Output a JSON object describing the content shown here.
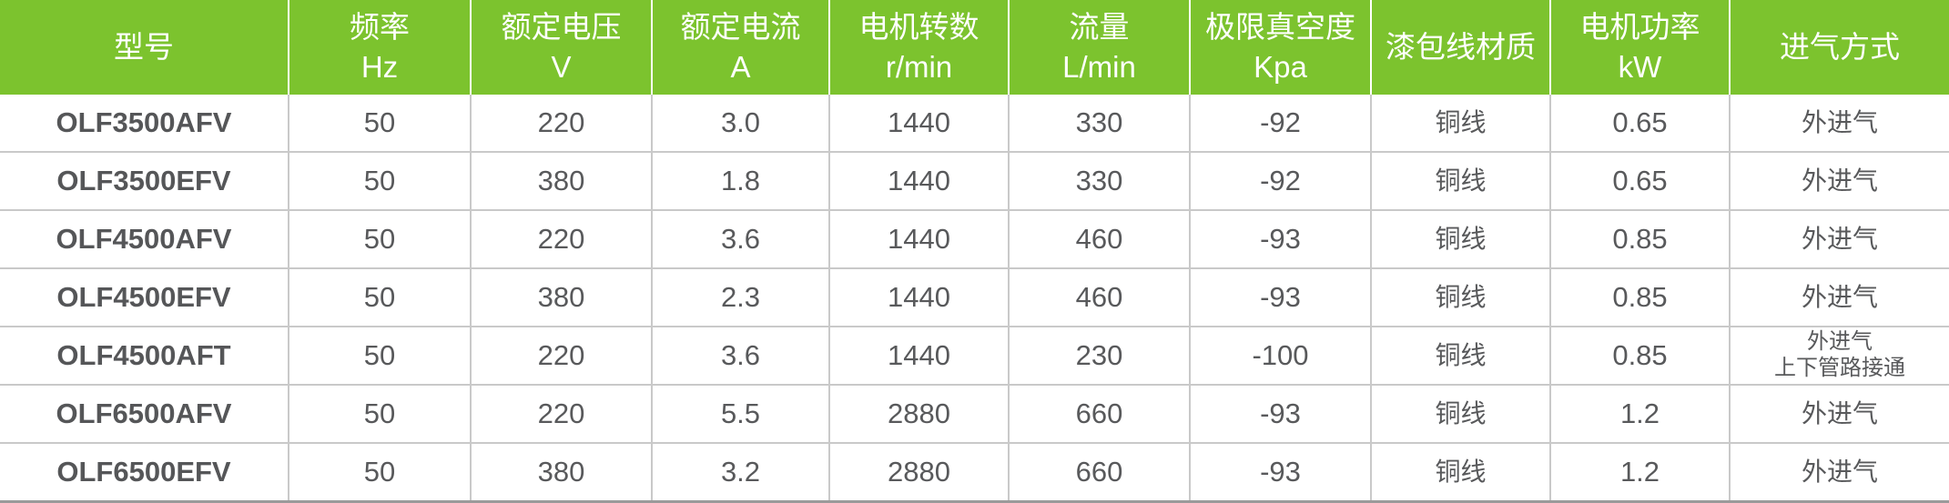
{
  "chart_data": {
    "type": "table",
    "title": "",
    "fields": [
      "model",
      "frequency_hz",
      "voltage_v",
      "current_a",
      "speed_rpm",
      "flow_lmin",
      "vacuum_kpa",
      "wire_material",
      "power_kw",
      "intake"
    ],
    "columns": [
      {
        "label": "型号",
        "unit": ""
      },
      {
        "label": "频率",
        "unit": "Hz"
      },
      {
        "label": "额定电压",
        "unit": "V"
      },
      {
        "label": "额定电流",
        "unit": "A"
      },
      {
        "label": "电机转数",
        "unit": "r/min"
      },
      {
        "label": "流量",
        "unit": "L/min"
      },
      {
        "label": "极限真空度",
        "unit": "Kpa"
      },
      {
        "label": "漆包线材质",
        "unit": ""
      },
      {
        "label": "电机功率",
        "unit": "kW"
      },
      {
        "label": "进气方式",
        "unit": ""
      }
    ],
    "rows": [
      {
        "model": "OLF3500AFV",
        "frequency_hz": "50",
        "voltage_v": "220",
        "current_a": "3.0",
        "speed_rpm": "1440",
        "flow_lmin": "330",
        "vacuum_kpa": "-92",
        "wire_material": "铜线",
        "power_kw": "0.65",
        "intake": "外进气"
      },
      {
        "model": "OLF3500EFV",
        "frequency_hz": "50",
        "voltage_v": "380",
        "current_a": "1.8",
        "speed_rpm": "1440",
        "flow_lmin": "330",
        "vacuum_kpa": "-92",
        "wire_material": "铜线",
        "power_kw": "0.65",
        "intake": "外进气"
      },
      {
        "model": "OLF4500AFV",
        "frequency_hz": "50",
        "voltage_v": "220",
        "current_a": "3.6",
        "speed_rpm": "1440",
        "flow_lmin": "460",
        "vacuum_kpa": "-93",
        "wire_material": "铜线",
        "power_kw": "0.85",
        "intake": "外进气"
      },
      {
        "model": "OLF4500EFV",
        "frequency_hz": "50",
        "voltage_v": "380",
        "current_a": "2.3",
        "speed_rpm": "1440",
        "flow_lmin": "460",
        "vacuum_kpa": "-93",
        "wire_material": "铜线",
        "power_kw": "0.85",
        "intake": "外进气"
      },
      {
        "model": "OLF4500AFT",
        "frequency_hz": "50",
        "voltage_v": "220",
        "current_a": "3.6",
        "speed_rpm": "1440",
        "flow_lmin": "230",
        "vacuum_kpa": "-100",
        "wire_material": "铜线",
        "power_kw": "0.85",
        "intake": "外进气",
        "intake_note": "上下管路接通"
      },
      {
        "model": "OLF6500AFV",
        "frequency_hz": "50",
        "voltage_v": "220",
        "current_a": "5.5",
        "speed_rpm": "2880",
        "flow_lmin": "660",
        "vacuum_kpa": "-93",
        "wire_material": "铜线",
        "power_kw": "1.2",
        "intake": "外进气"
      },
      {
        "model": "OLF6500EFV",
        "frequency_hz": "50",
        "voltage_v": "380",
        "current_a": "3.2",
        "speed_rpm": "2880",
        "flow_lmin": "660",
        "vacuum_kpa": "-93",
        "wire_material": "铜线",
        "power_kw": "1.2",
        "intake": "外进气"
      }
    ],
    "layout": {
      "grid": "on",
      "legend": "none"
    }
  },
  "colors": {
    "header_bg": "#7cc32e",
    "header_text": "#ffffff",
    "body_text": "#58595b",
    "grid_line": "#c9c9c9",
    "bottom_border": "#9a9a9a"
  }
}
